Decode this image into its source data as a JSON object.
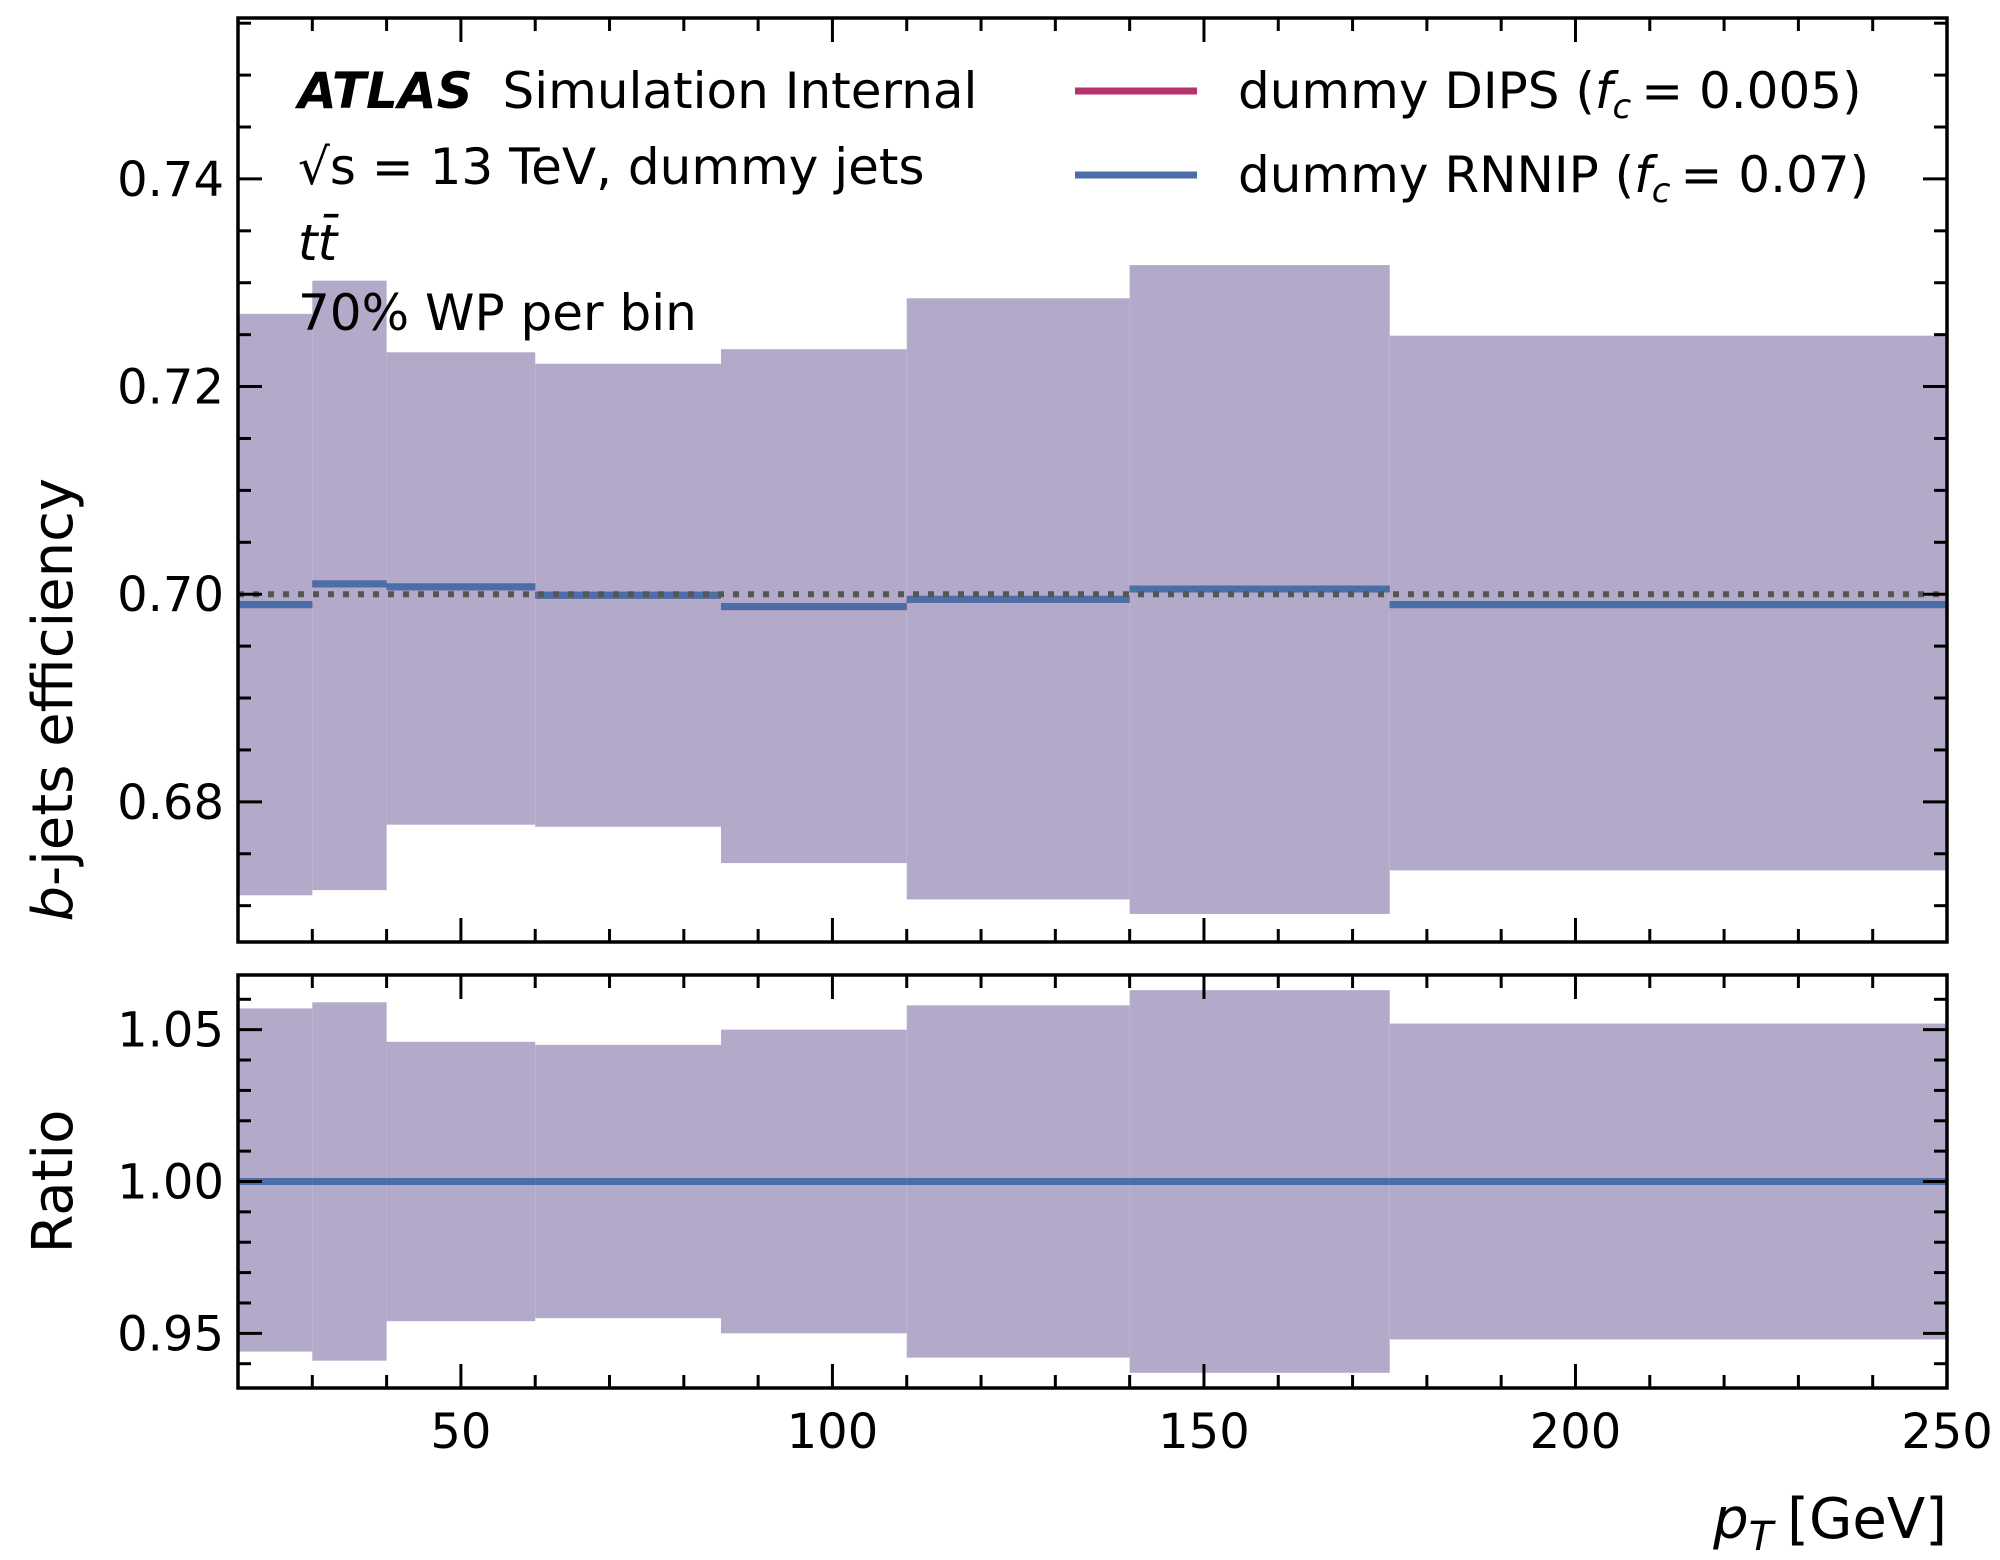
{
  "chart_data": [
    {
      "panel": "main",
      "type": "step-line-with-band",
      "ylabel_italic": "b",
      "ylabel_rest": "-jets efficiency",
      "xlim": [
        20,
        250
      ],
      "ylim": [
        0.6665,
        0.7555
      ],
      "yticks": [
        0.68,
        0.7,
        0.72,
        0.74
      ],
      "ytick_labels": [
        "0.68",
        "0.70",
        "0.72",
        "0.74"
      ],
      "bin_edges": [
        20,
        30,
        40,
        60,
        85,
        110,
        140,
        175,
        250
      ],
      "reference_line": {
        "y": 0.7,
        "style": "dotted",
        "color": "#555555"
      },
      "info": {
        "atlas": "ATLAS",
        "status": "Simulation Internal",
        "sqrt_s": "√s = 13 TeV, dummy jets",
        "process": "tt̄",
        "wp": "70% WP per bin"
      },
      "legend_position": "top-right",
      "series": [
        {
          "name": "dummy DIPS (f_c = 0.005)",
          "legend_label": "dummy DIPS (",
          "legend_fc": "= 0.005)",
          "color": "#b5326e",
          "values": [
            0.699,
            0.701,
            0.7007,
            0.6999,
            0.6988,
            0.6995,
            0.7005,
            0.699
          ],
          "band_upper": [
            0.727,
            0.7302,
            0.7233,
            0.7222,
            0.7236,
            0.7285,
            0.7317,
            0.7249
          ],
          "band_lower": [
            0.671,
            0.6715,
            0.6778,
            0.6776,
            0.6741,
            0.6706,
            0.6692,
            0.6734
          ]
        },
        {
          "name": "dummy RNNIP (f_c = 0.07)",
          "legend_label": "dummy RNNIP (",
          "legend_fc": "= 0.07)",
          "color": "#4a6ea8",
          "values": [
            0.699,
            0.701,
            0.7007,
            0.6999,
            0.6988,
            0.6995,
            0.7005,
            0.699
          ],
          "band_upper": [
            0.727,
            0.7302,
            0.7233,
            0.7222,
            0.7236,
            0.7285,
            0.7317,
            0.7249
          ],
          "band_lower": [
            0.671,
            0.6715,
            0.6778,
            0.6776,
            0.6741,
            0.6706,
            0.6692,
            0.6734
          ]
        }
      ],
      "band_color": "#b3a9c9"
    },
    {
      "panel": "ratio",
      "type": "step-line-with-band",
      "ylabel": "Ratio",
      "xlabel_italic": "p",
      "xlabel_sub": "T",
      "xlabel_rest": "[GeV]",
      "xlim": [
        20,
        250
      ],
      "ylim": [
        0.932,
        1.068
      ],
      "yticks": [
        0.95,
        1.0,
        1.05
      ],
      "ytick_labels": [
        "0.95",
        "1.00",
        "1.05"
      ],
      "xticks": [
        50,
        100,
        150,
        200,
        250
      ],
      "xtick_labels": [
        "50",
        "100",
        "150",
        "200",
        "250"
      ],
      "bin_edges": [
        20,
        30,
        40,
        60,
        85,
        110,
        140,
        175,
        250
      ],
      "series": [
        {
          "name": "dummy RNNIP (f_c = 0.07)",
          "color": "#4a6ea8",
          "values": [
            1.0,
            1.0,
            1.0,
            1.0,
            1.0,
            1.0,
            1.0,
            1.0
          ],
          "band_upper": [
            1.057,
            1.059,
            1.046,
            1.045,
            1.05,
            1.058,
            1.063,
            1.052
          ],
          "band_lower": [
            0.944,
            0.941,
            0.954,
            0.955,
            0.95,
            0.942,
            0.937,
            0.948
          ]
        }
      ],
      "band_color": "#b3a9c9"
    }
  ]
}
